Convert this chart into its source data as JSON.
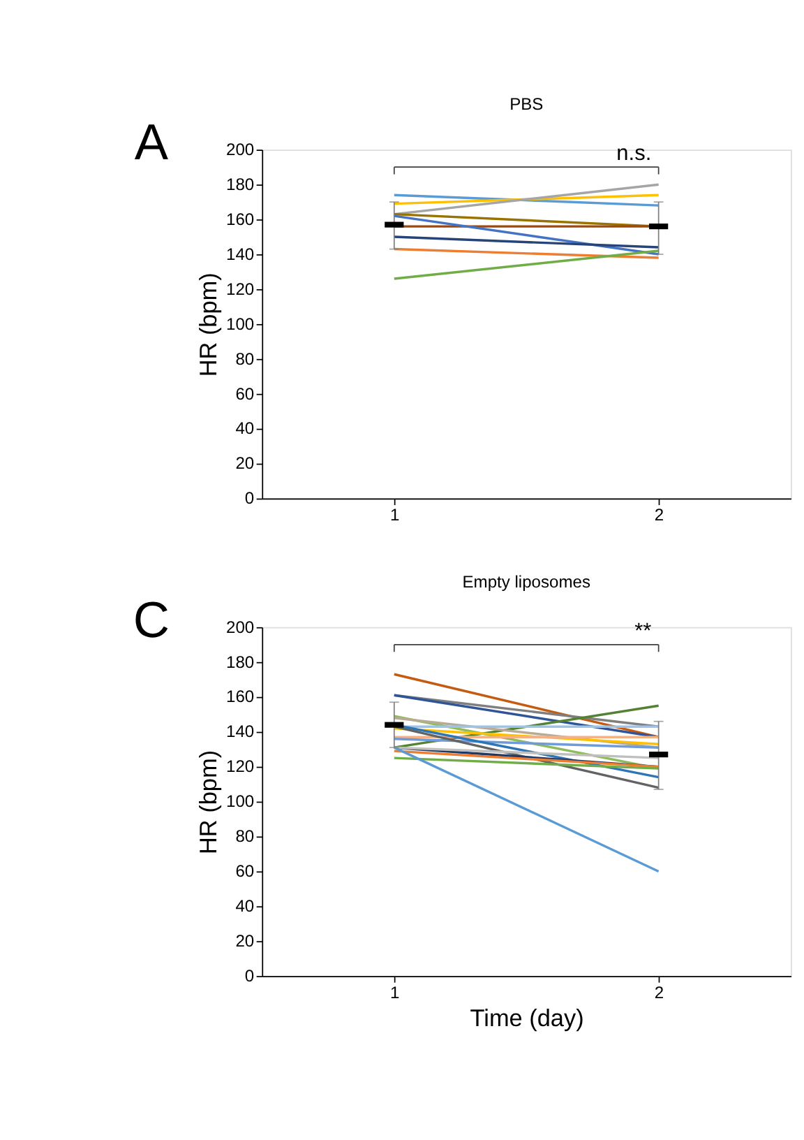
{
  "chart_data": [
    {
      "type": "line",
      "title": "PBS",
      "ylabel": "HR (bpm)",
      "categories": [
        "1",
        "2"
      ],
      "ylim": [
        0,
        200
      ],
      "yticks": [
        0,
        20,
        40,
        60,
        80,
        100,
        120,
        140,
        160,
        180,
        200
      ],
      "grid": false,
      "legend": false,
      "marker": "none",
      "line_style": "solid",
      "annotations": [
        "A",
        "n.s."
      ],
      "series": [
        {
          "color": "#5b9bd5",
          "values": [
            174,
            168
          ]
        },
        {
          "color": "#ffc000",
          "values": [
            169,
            174
          ]
        },
        {
          "color": "#a5a5a5",
          "values": [
            163,
            180
          ]
        },
        {
          "color": "#997300",
          "values": [
            163,
            156
          ]
        },
        {
          "color": "#9e480e",
          "values": [
            156,
            156
          ]
        },
        {
          "color": "#4472c4",
          "values": [
            162,
            140
          ]
        },
        {
          "color": "#264478",
          "values": [
            150,
            144
          ]
        },
        {
          "color": "#ed7d31",
          "values": [
            143,
            138
          ]
        },
        {
          "color": "#70ad47",
          "values": [
            126,
            142
          ]
        },
        {
          "type": "scatter",
          "marker": "square",
          "color": "#000000",
          "values": [
            157,
            156
          ],
          "errors": [
            [
              143,
              170
            ],
            [
              140,
              170
            ]
          ]
        }
      ]
    },
    {
      "type": "line",
      "title": "Empty liposomes",
      "xlabel": "Time (day)",
      "ylabel": "HR (bpm)",
      "categories": [
        "1",
        "2"
      ],
      "ylim": [
        0,
        200
      ],
      "yticks": [
        0,
        20,
        40,
        60,
        80,
        100,
        120,
        140,
        160,
        180,
        200
      ],
      "grid": false,
      "legend": false,
      "marker": "none",
      "line_style": "solid",
      "annotations": [
        "C",
        "**"
      ],
      "series": [
        {
          "color": "#c55a11",
          "values": [
            173,
            137
          ]
        },
        {
          "color": "#7f7f7f",
          "values": [
            161,
            143
          ]
        },
        {
          "color": "#2f5597",
          "values": [
            161,
            137
          ]
        },
        {
          "color": "#548235",
          "values": [
            131,
            155
          ]
        },
        {
          "color": "#8fbc5a",
          "values": [
            149,
            119
          ]
        },
        {
          "color": "#b7ab96",
          "values": [
            148,
            131
          ]
        },
        {
          "color": "#9dc3e6",
          "values": [
            143,
            143
          ]
        },
        {
          "color": "#ffc000",
          "values": [
            142,
            133
          ]
        },
        {
          "color": "#f4b183",
          "values": [
            137,
            137
          ]
        },
        {
          "color": "#6f9bd8",
          "values": [
            136,
            131
          ]
        },
        {
          "color": "#2e75b6",
          "values": [
            144,
            114
          ]
        },
        {
          "color": "#636363",
          "values": [
            143,
            108
          ]
        },
        {
          "color": "#1f3864",
          "values": [
            131,
            120
          ]
        },
        {
          "color": "#bfbfbf",
          "values": [
            131,
            125
          ]
        },
        {
          "color": "#ed7d31",
          "values": [
            129,
            120
          ]
        },
        {
          "color": "#70ad47",
          "values": [
            125,
            119
          ]
        },
        {
          "color": "#5b9bd5",
          "values": [
            131,
            60
          ]
        },
        {
          "type": "scatter",
          "marker": "square",
          "color": "#000000",
          "values": [
            144,
            127
          ],
          "errors": [
            [
              131,
              157
            ],
            [
              107,
              146
            ]
          ]
        }
      ]
    }
  ]
}
